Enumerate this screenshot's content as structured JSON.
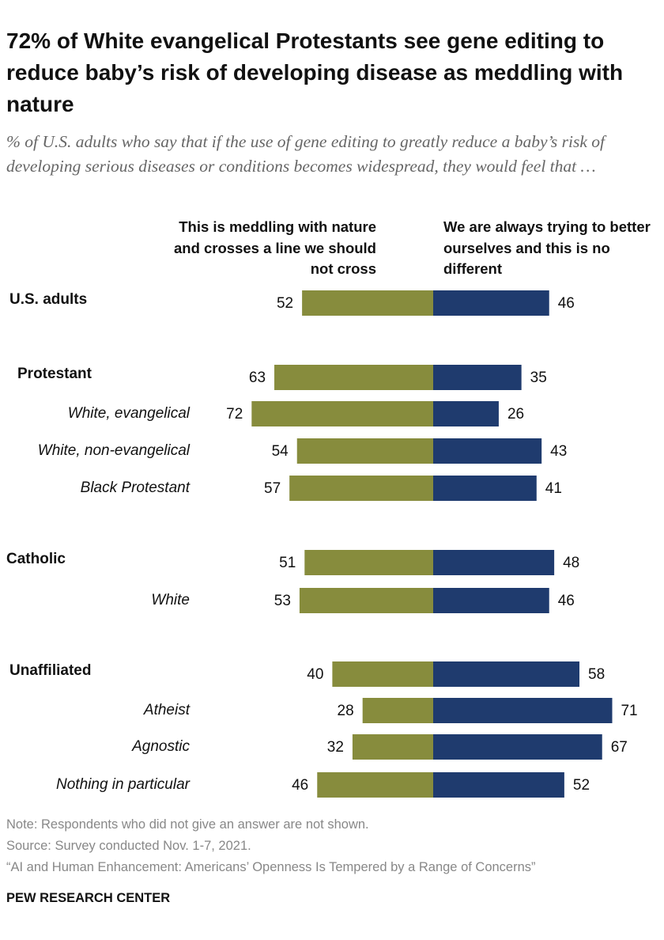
{
  "chart_data": {
    "type": "diverging_bar",
    "title": "72% of White evangelical Protestants see gene editing to reduce baby’s risk of developing disease as meddling with nature",
    "subtitle": "% of U.S. adults who say that if the use of gene editing to greatly reduce a baby’s risk of developing serious diseases or conditions becomes widespread, they would feel that …",
    "categories": [
      "U.S. adults",
      "Protestant",
      "White, evangelical",
      "White, non-evangelical",
      "Black Protestant",
      "Catholic",
      "White",
      "Unaffiliated",
      "Atheist",
      "Agnostic",
      "Nothing in particular"
    ],
    "series": [
      {
        "name": "This is meddling with nature and crosses a line we should not cross",
        "color": "#878c3d",
        "values": [
          52,
          63,
          72,
          54,
          57,
          51,
          53,
          40,
          28,
          32,
          46
        ]
      },
      {
        "name": "We are always trying to better ourselves and this is no different",
        "color": "#1f3b6e",
        "values": [
          46,
          35,
          26,
          43,
          41,
          48,
          46,
          58,
          71,
          67,
          52
        ]
      }
    ],
    "notes": [
      "Note: Respondents who did not give an answer are not shown.",
      "Source: Survey conducted Nov. 1-7, 2021.",
      "“AI and Human Enhancement: Americans’ Openness Is Tempered by a Range of Concerns”"
    ],
    "credit": "PEW RESEARCH CENTER"
  }
}
